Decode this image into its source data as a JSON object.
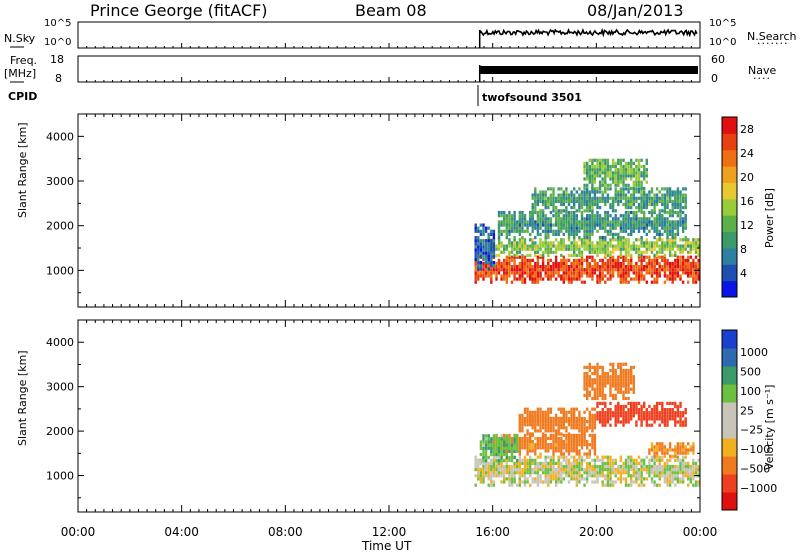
{
  "header": {
    "station": "Prince George (fitACF)",
    "beam": "Beam 08",
    "date": "08/Jan/2013"
  },
  "strips": {
    "nsky_label": "N.Sky",
    "nsky_ticks": [
      "10^5",
      "10^0"
    ],
    "nsearch_label": "N.Search",
    "nsearch_ticks": [
      "10^5",
      "10^0"
    ],
    "freq_label_1": "Freq.",
    "freq_label_2": "[MHz]",
    "freq_ticks": [
      "18",
      "8"
    ],
    "nave_label": "Nave",
    "nave_ticks": [
      "60",
      "0"
    ],
    "cpid_label": "CPID",
    "cpid_value": "twofsound 3501"
  },
  "colors": {
    "power": [
      "#0a14e6",
      "#1e4fb0",
      "#2e7fa0",
      "#3a9a6a",
      "#5cb04a",
      "#9acc3a",
      "#e8c830",
      "#f0a020",
      "#ee7010",
      "#e84010",
      "#e01010"
    ],
    "velocity": [
      "#e01010",
      "#ee4020",
      "#f07a20",
      "#f0b020",
      "#c8c4b8",
      "#c8c4b8",
      "#6cc040",
      "#3a9a6a",
      "#2e6ab0",
      "#1a3fcc"
    ]
  },
  "chart_data": [
    {
      "type": "heatmap",
      "name": "power-panel",
      "xlabel": "Time UT",
      "ylabel": "Slant Range [km]",
      "x_ticks": [
        "00:00",
        "04:00",
        "08:00",
        "12:00",
        "16:00",
        "20:00",
        "00:00"
      ],
      "x_range_hours": [
        0,
        24
      ],
      "y_range_km": [
        180,
        4500
      ],
      "y_ticks": [
        1000,
        2000,
        3000,
        4000
      ],
      "colorbar": {
        "label": "Power [dB]",
        "ticks": [
          "4",
          "8",
          "12",
          "16",
          "20",
          "24",
          "28"
        ],
        "range": [
          0,
          30
        ]
      },
      "echo_regions": [
        {
          "t0": 15.3,
          "t1": 24,
          "r0": 700,
          "r1": 1300,
          "value": 26
        },
        {
          "t0": 15.8,
          "t1": 24,
          "r0": 1300,
          "r1": 1700,
          "value": 14
        },
        {
          "t0": 16.2,
          "t1": 23.5,
          "r0": 1700,
          "r1": 2300,
          "value": 9
        },
        {
          "t0": 17.5,
          "t1": 23.5,
          "r0": 2300,
          "r1": 2800,
          "value": 10
        },
        {
          "t0": 19.5,
          "t1": 22.0,
          "r0": 2800,
          "r1": 3500,
          "value": 12
        },
        {
          "t0": 15.3,
          "t1": 16.0,
          "r0": 1000,
          "r1": 2000,
          "value": 5
        }
      ]
    },
    {
      "type": "heatmap",
      "name": "velocity-panel",
      "xlabel": "Time UT",
      "ylabel": "Slant Range [km]",
      "x_ticks": [
        "00:00",
        "04:00",
        "08:00",
        "12:00",
        "16:00",
        "20:00",
        "00:00"
      ],
      "x_range_hours": [
        0,
        24
      ],
      "y_range_km": [
        180,
        4500
      ],
      "y_ticks": [
        1000,
        2000,
        3000,
        4000
      ],
      "colorbar": {
        "label": "Velocity [m s⁻¹]",
        "ticks": [
          "1000",
          "500",
          "100",
          "25",
          "−25",
          "−100",
          "−500",
          "−1000"
        ]
      },
      "echo_regions": [
        {
          "t0": 15.3,
          "t1": 24,
          "r0": 750,
          "r1": 1450,
          "value": 0
        },
        {
          "t0": 16.0,
          "t1": 20.0,
          "r0": 1450,
          "r1": 1900,
          "value": -150
        },
        {
          "t0": 15.5,
          "t1": 17.0,
          "r0": 1300,
          "r1": 1900,
          "value": 80
        },
        {
          "t0": 17.0,
          "t1": 20.0,
          "r0": 1900,
          "r1": 2500,
          "value": -300
        },
        {
          "t0": 20.0,
          "t1": 23.5,
          "r0": 2100,
          "r1": 2600,
          "value": -600
        },
        {
          "t0": 19.5,
          "t1": 21.5,
          "r0": 2700,
          "r1": 3500,
          "value": -300
        },
        {
          "t0": 22.0,
          "t1": 23.8,
          "r0": 1400,
          "r1": 1700,
          "value": -120
        }
      ]
    }
  ]
}
